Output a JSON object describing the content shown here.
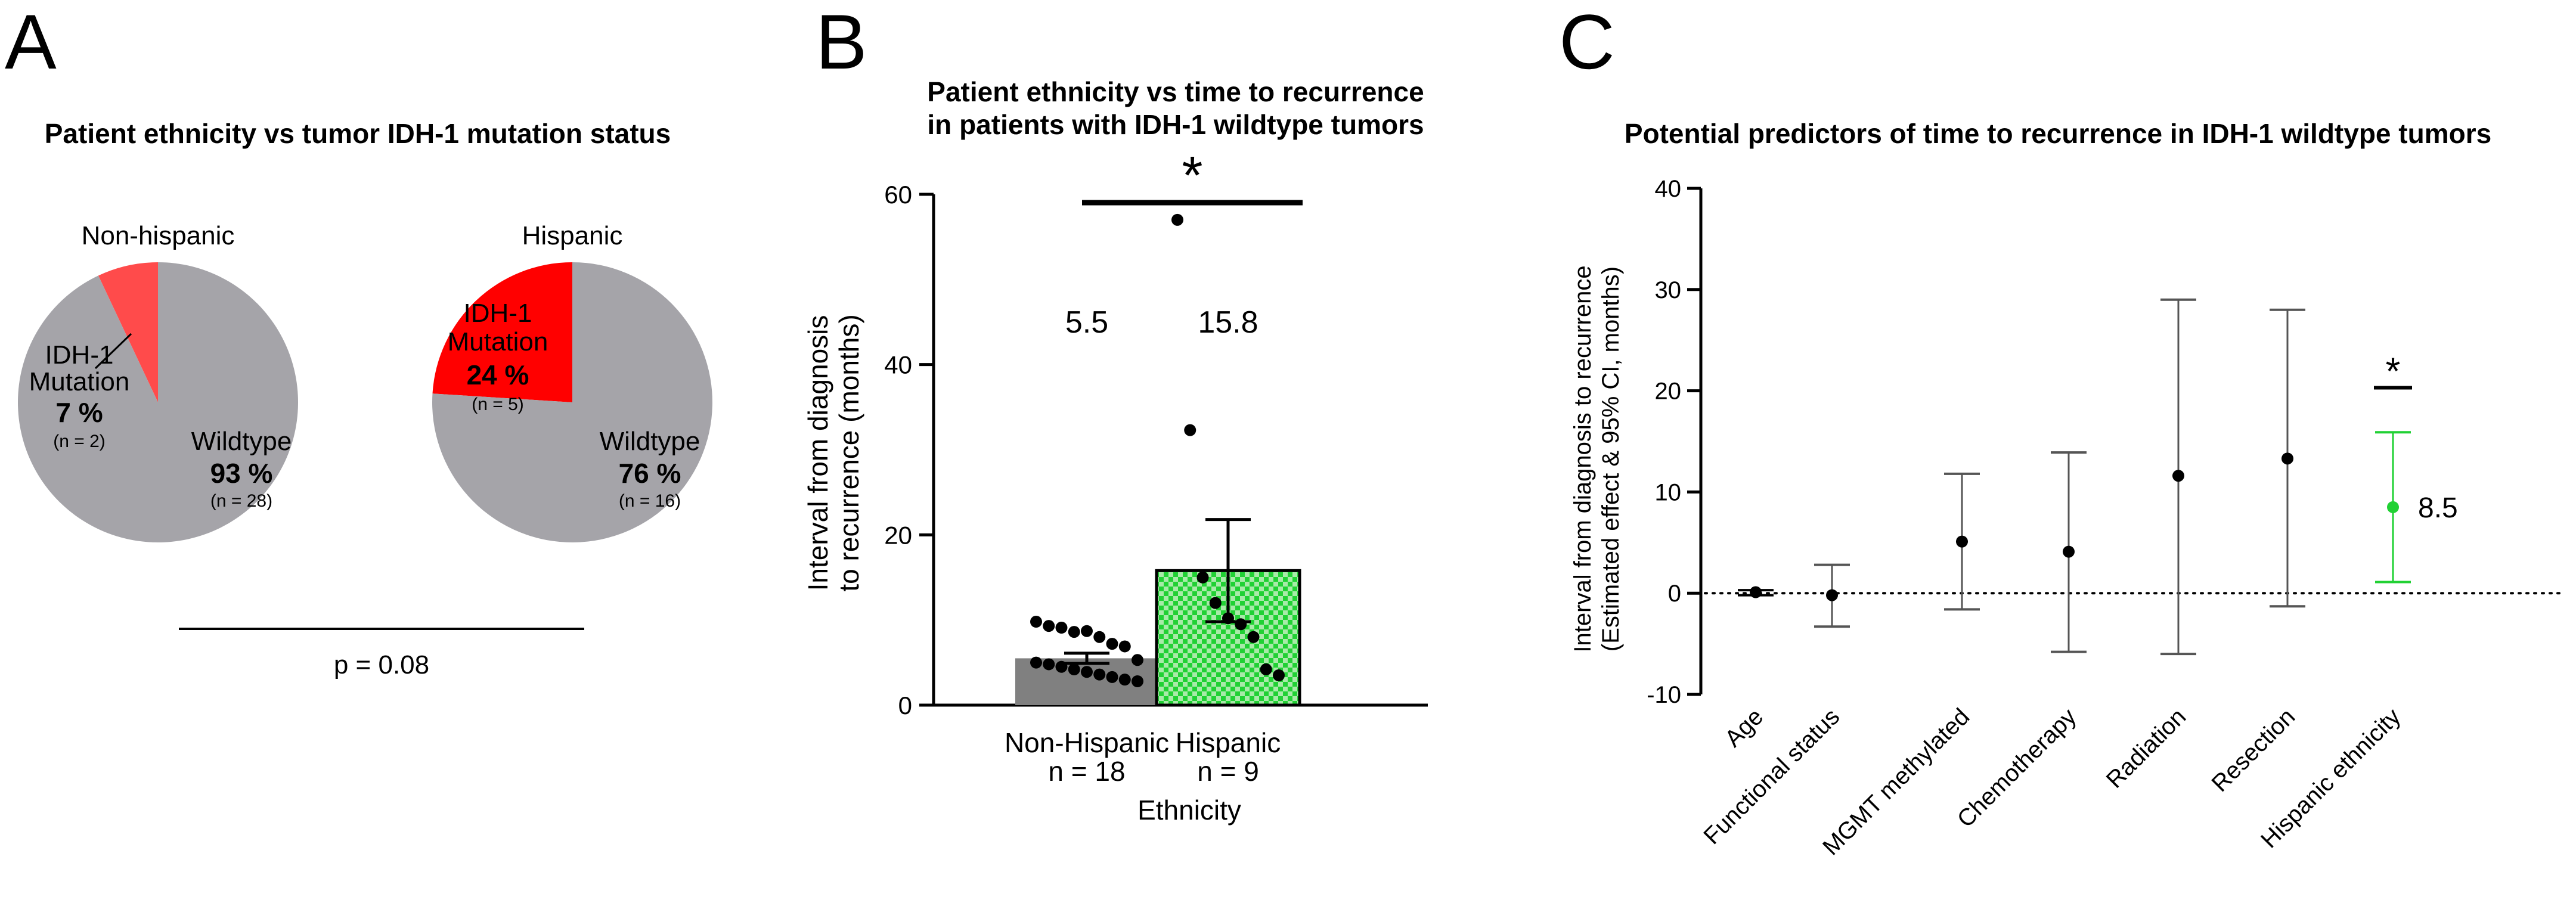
{
  "panels": {
    "a": {
      "letter": "A",
      "title": "Patient ethnicity vs tumor IDH-1 mutation status",
      "pvalue_label": "p = 0.08"
    },
    "b": {
      "letter": "B",
      "title_line1": "Patient ethnicity vs time to recurrence",
      "title_line2": "in patients with  IDH-1 wildtype tumors",
      "significance_mark": "*",
      "ylabel_line1": "Interval from diagnosis",
      "ylabel_line2": "to recurrence (months)",
      "xlabel": "Ethnicity",
      "group_counts": [
        "n = 18",
        "n = 9"
      ]
    },
    "c": {
      "letter": "C",
      "title": "Potential predictors of time to recurrence in IDH-1 wildtype tumors",
      "ylabel_line1": "Interval from diagnosis to recurrence",
      "ylabel_line2": "(Estimated effect & 95% CI, months)",
      "significance_mark": "*",
      "annotation": "8.5"
    }
  },
  "colors": {
    "gray": "#a5a4a9",
    "red": "#ff0000",
    "light_red": "#ff4b4b",
    "bar_gray": "#808080",
    "green": "#21d134",
    "green_light": "#9ae59e"
  },
  "chart_data": [
    {
      "type": "pie",
      "title": "Non-hispanic",
      "slices": [
        {
          "label_lines": [
            "IDH-1",
            "Mutation"
          ],
          "percent_label": "7 %",
          "n_label": "(n = 2)",
          "value": 7,
          "color": "#ff4b4b"
        },
        {
          "label_lines": [
            "Wildtype"
          ],
          "percent_label": "93 %",
          "n_label": "(n = 28)",
          "value": 93,
          "color": "#a5a4a9"
        }
      ]
    },
    {
      "type": "pie",
      "title": "Hispanic",
      "slices": [
        {
          "label_lines": [
            "IDH-1",
            "Mutation"
          ],
          "percent_label": "24 %",
          "n_label": "(n = 5)",
          "value": 24,
          "color": "#ff0000"
        },
        {
          "label_lines": [
            "Wildtype"
          ],
          "percent_label": "76 %",
          "n_label": "(n = 16)",
          "value": 76,
          "color": "#a5a4a9"
        }
      ]
    },
    {
      "type": "bar",
      "title": "Patient ethnicity vs time to recurrence in patients with  IDH-1 wildtype tumors",
      "categories": [
        "Non-Hispanic",
        "Hispanic"
      ],
      "values": [
        5.5,
        15.8
      ],
      "value_labels": [
        "5.5",
        "15.8"
      ],
      "sem": [
        0.6,
        6.0
      ],
      "xlabel": "Ethnicity",
      "ylabel": "Interval from diagnosis to recurrence (months)",
      "ylim": [
        0,
        60
      ],
      "yticks": [
        0,
        20,
        40,
        60
      ],
      "points": [
        [
          9.8,
          9.3,
          9.1,
          8.6,
          8.7,
          8.0,
          7.2,
          6.9,
          5.3,
          5.0,
          4.8,
          4.5,
          4.2,
          3.9,
          3.6,
          3.3,
          3.0,
          2.8
        ],
        [
          57.0,
          32.3,
          15.0,
          12.0,
          10.2,
          9.5,
          8.0,
          4.2,
          3.5
        ]
      ]
    },
    {
      "type": "scatter",
      "subtype": "forest",
      "title": "Potential predictors of time to recurrence in IDH-1 wildtype tumors",
      "categories": [
        "Age",
        "Functional status",
        "MGMT methylated",
        "Chemotherapy",
        "Radiation",
        "Resection",
        "Hispanic ethnicity"
      ],
      "estimates": [
        0.1,
        -0.2,
        5.1,
        4.1,
        11.6,
        13.3,
        8.5
      ],
      "ci_low": [
        -0.2,
        -3.3,
        -1.6,
        -5.8,
        -6.0,
        -1.3,
        1.1
      ],
      "ci_high": [
        0.3,
        2.8,
        11.8,
        13.9,
        29.0,
        28.0,
        15.9
      ],
      "highlight_index": 6,
      "ylabel": "Interval from diagnosis to recurrence (Estimated effect & 95% CI, months)",
      "ylim": [
        -10,
        40
      ],
      "yticks": [
        -10,
        0,
        10,
        20,
        30,
        40
      ],
      "reference_line": 0
    }
  ]
}
